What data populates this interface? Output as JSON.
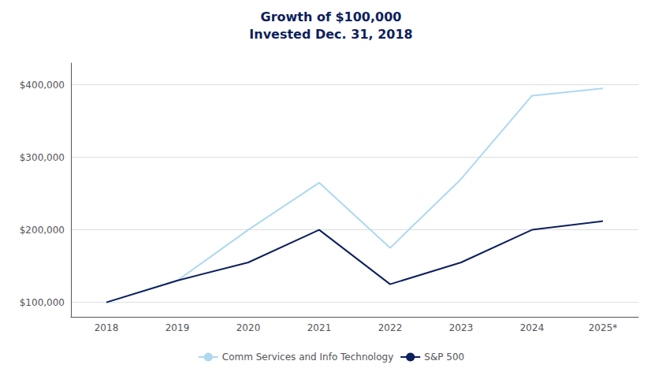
{
  "chart_data": {
    "type": "line",
    "title": "Growth of $100,000",
    "subtitle": "Invested Dec. 31, 2018",
    "categories": [
      "2018",
      "2019",
      "2020",
      "2021",
      "2022",
      "2023",
      "2024",
      "2025*"
    ],
    "series": [
      {
        "name": "Comm Services and Info Technology",
        "color": "#add8f0",
        "values": [
          100000,
          130000,
          200000,
          265000,
          175000,
          270000,
          385000,
          395000
        ]
      },
      {
        "name": "S&P 500",
        "color": "#0d1f5c",
        "values": [
          100000,
          130000,
          155000,
          200000,
          125000,
          155000,
          200000,
          212000
        ]
      }
    ],
    "ylim": [
      80000,
      430000
    ],
    "yticks": [
      {
        "value": 100000,
        "label": "$100,000"
      },
      {
        "value": 200000,
        "label": "$200,000"
      },
      {
        "value": 300000,
        "label": "$300,000"
      },
      {
        "value": 400000,
        "label": "$400,000"
      }
    ],
    "grid": true,
    "legend": "bottom",
    "title_color": "#0d1f5c"
  }
}
